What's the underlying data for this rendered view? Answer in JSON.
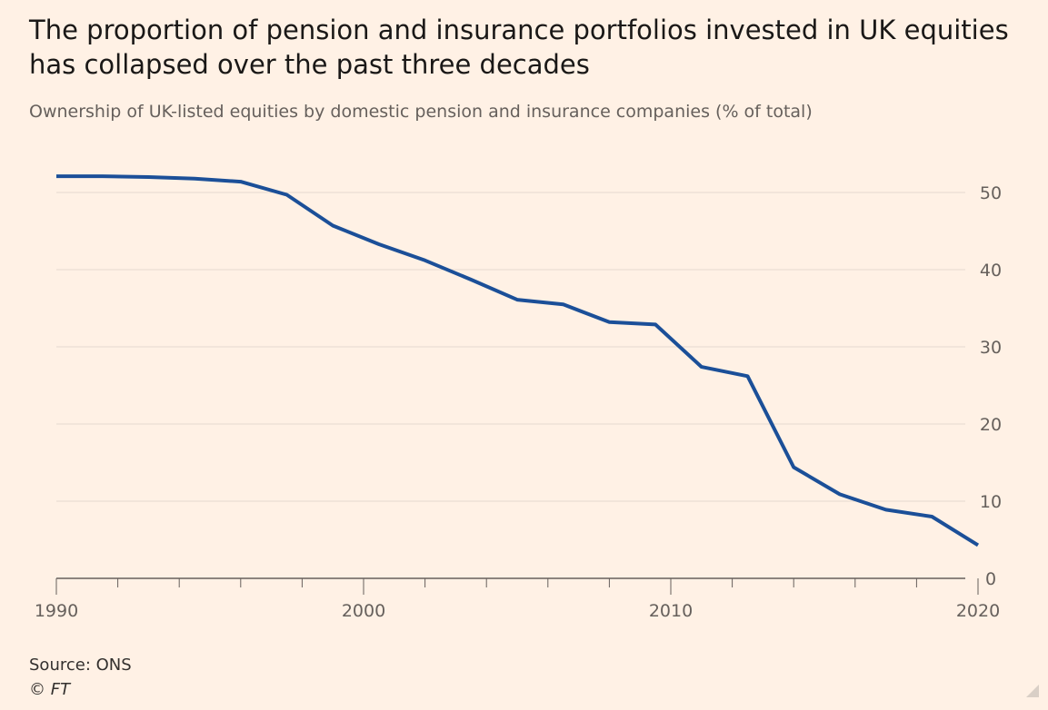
{
  "chart_data": {
    "type": "line",
    "title": "The proportion of pension and insurance portfolios invested in UK equities has collapsed over the past three decades",
    "subtitle": "Ownership of UK-listed equities by domestic pension and insurance companies (% of total)",
    "xlabel": "",
    "ylabel": "",
    "xlim": [
      1990,
      2020
    ],
    "ylim": [
      0,
      55
    ],
    "x_ticks": [
      1990,
      2000,
      2010,
      2020
    ],
    "y_ticks": [
      0,
      10,
      20,
      30,
      40,
      50
    ],
    "grid": true,
    "y_axis_position": "right",
    "series": [
      {
        "color": "#1b4f98",
        "x": [
          1990,
          1991.5,
          1993,
          1994.5,
          1996,
          1997.5,
          1999,
          2000.5,
          2002,
          2003.5,
          2005,
          2006.5,
          2008,
          2009.5,
          2011,
          2012.5,
          2014,
          2015.5,
          2017,
          2018.5,
          2020
        ],
        "y": [
          52.1,
          52.1,
          52.0,
          51.8,
          51.4,
          49.7,
          45.7,
          43.3,
          41.2,
          38.7,
          36.1,
          35.5,
          33.2,
          32.9,
          27.4,
          26.2,
          14.4,
          10.9,
          8.9,
          8.0,
          4.3
        ]
      }
    ]
  },
  "footer": {
    "source": "Source: ONS",
    "copyright": "© FT"
  }
}
